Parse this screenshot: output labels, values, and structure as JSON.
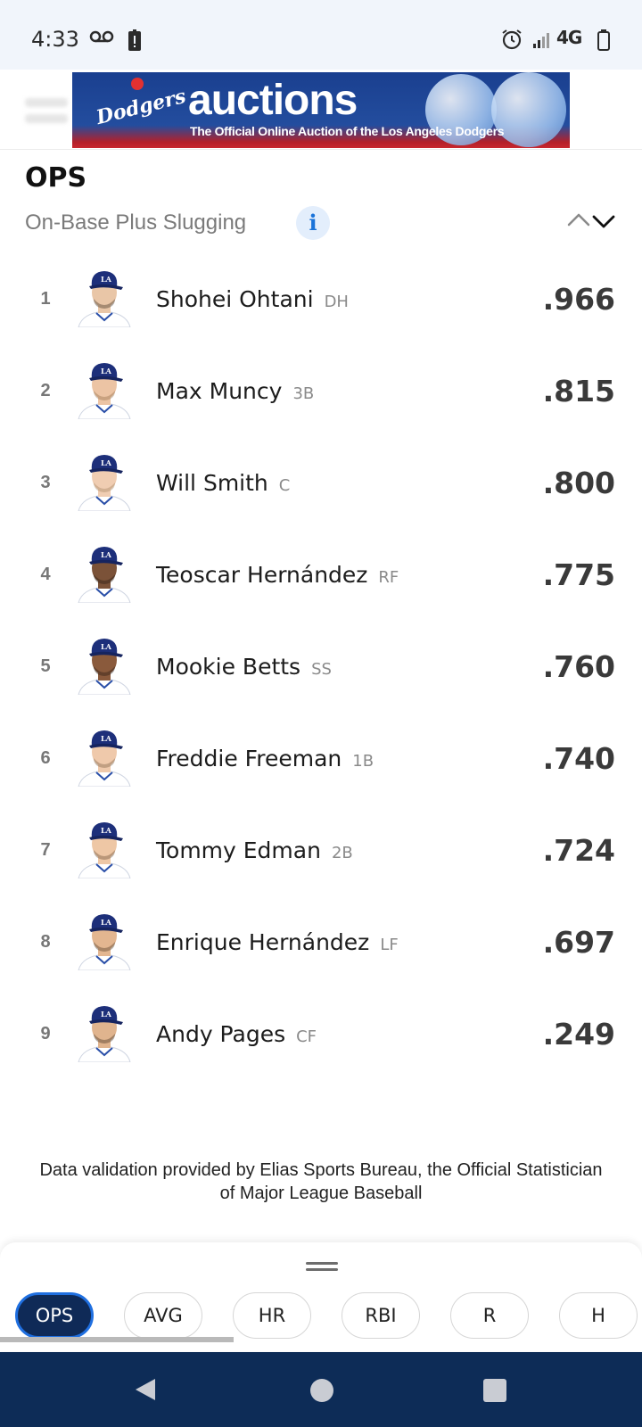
{
  "status_bar": {
    "time": "4:33",
    "network": "4G",
    "icons": [
      "voicemail-icon",
      "alert-icon",
      "alarm-icon",
      "signal-icon",
      "battery-icon"
    ]
  },
  "ad": {
    "logo_text": "Dodgers",
    "title": "auctions",
    "subtitle": "The Official Online Auction of the Los Angeles Dodgers"
  },
  "header": {
    "title": "OPS",
    "subtitle": "On-Base Plus Slugging",
    "info_label": "i"
  },
  "leaders": [
    {
      "rank": "1",
      "name": "Shohei Ohtani",
      "position": "DH",
      "value": ".966",
      "skin": "#e9c6a7",
      "hair": "#2b1d12"
    },
    {
      "rank": "2",
      "name": "Max Muncy",
      "position": "3B",
      "value": ".815",
      "skin": "#ecc4a4",
      "hair": "#8a6440"
    },
    {
      "rank": "3",
      "name": "Will Smith",
      "position": "C",
      "value": ".800",
      "skin": "#f0cdb2",
      "hair": "#9a7a55"
    },
    {
      "rank": "4",
      "name": "Teoscar Hernández",
      "position": "RF",
      "value": ".775",
      "skin": "#7b5238",
      "hair": "#1b120c"
    },
    {
      "rank": "5",
      "name": "Mookie Betts",
      "position": "SS",
      "value": ".760",
      "skin": "#8a5a3c",
      "hair": "#1b120c"
    },
    {
      "rank": "6",
      "name": "Freddie Freeman",
      "position": "1B",
      "value": ".740",
      "skin": "#efc9ab",
      "hair": "#6d5036"
    },
    {
      "rank": "7",
      "name": "Tommy Edman",
      "position": "2B",
      "value": ".724",
      "skin": "#eec7a5",
      "hair": "#5a3f28"
    },
    {
      "rank": "8",
      "name": "Enrique Hernández",
      "position": "LF",
      "value": ".697",
      "skin": "#e3b690",
      "hair": "#3a2718"
    },
    {
      "rank": "9",
      "name": "Andy Pages",
      "position": "CF",
      "value": ".249",
      "skin": "#e0b48e",
      "hair": "#2b1d12"
    }
  ],
  "footer": {
    "note": "Data validation provided by Elias Sports Bureau, the Official Statistician of Major League Baseball"
  },
  "stat_tabs": [
    {
      "label": "OPS",
      "active": true
    },
    {
      "label": "AVG",
      "active": false
    },
    {
      "label": "HR",
      "active": false
    },
    {
      "label": "RBI",
      "active": false
    },
    {
      "label": "R",
      "active": false
    },
    {
      "label": "H",
      "active": false
    }
  ],
  "colors": {
    "dodger_blue": "#1a3f8f",
    "active_chip": "#0f2a57",
    "active_chip_border": "#1f6fe0",
    "nav_bar": "#0d2c57"
  }
}
